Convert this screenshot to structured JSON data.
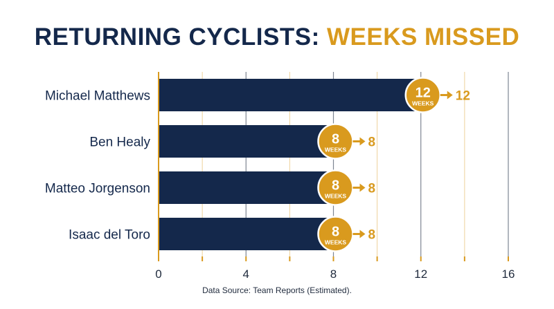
{
  "title": {
    "part1": "RETURNING CYCLISTS:",
    "part2": "WEEKS MISSED"
  },
  "source": "Data Source: Team Reports (Estimated).",
  "colors": {
    "bar": "#14284b",
    "accent": "#d99a1e",
    "grid_major": "#7d8592",
    "grid_minor": "#d99a1e",
    "axis": "#d99a1e"
  },
  "chart_data": {
    "type": "bar",
    "orientation": "horizontal",
    "title": "RETURNING CYCLISTS: WEEKS MISSED",
    "categories": [
      "Michael Matthews",
      "Ben Healy",
      "Matteo Jorgenson",
      "Isaac del Toro"
    ],
    "values": [
      12,
      8,
      8,
      8
    ],
    "badge_unit": "WEEKS",
    "xlim": [
      0,
      16
    ],
    "xticks": [
      0,
      4,
      8,
      12,
      16
    ],
    "xlabel": "",
    "ylabel": "",
    "grid": true
  }
}
